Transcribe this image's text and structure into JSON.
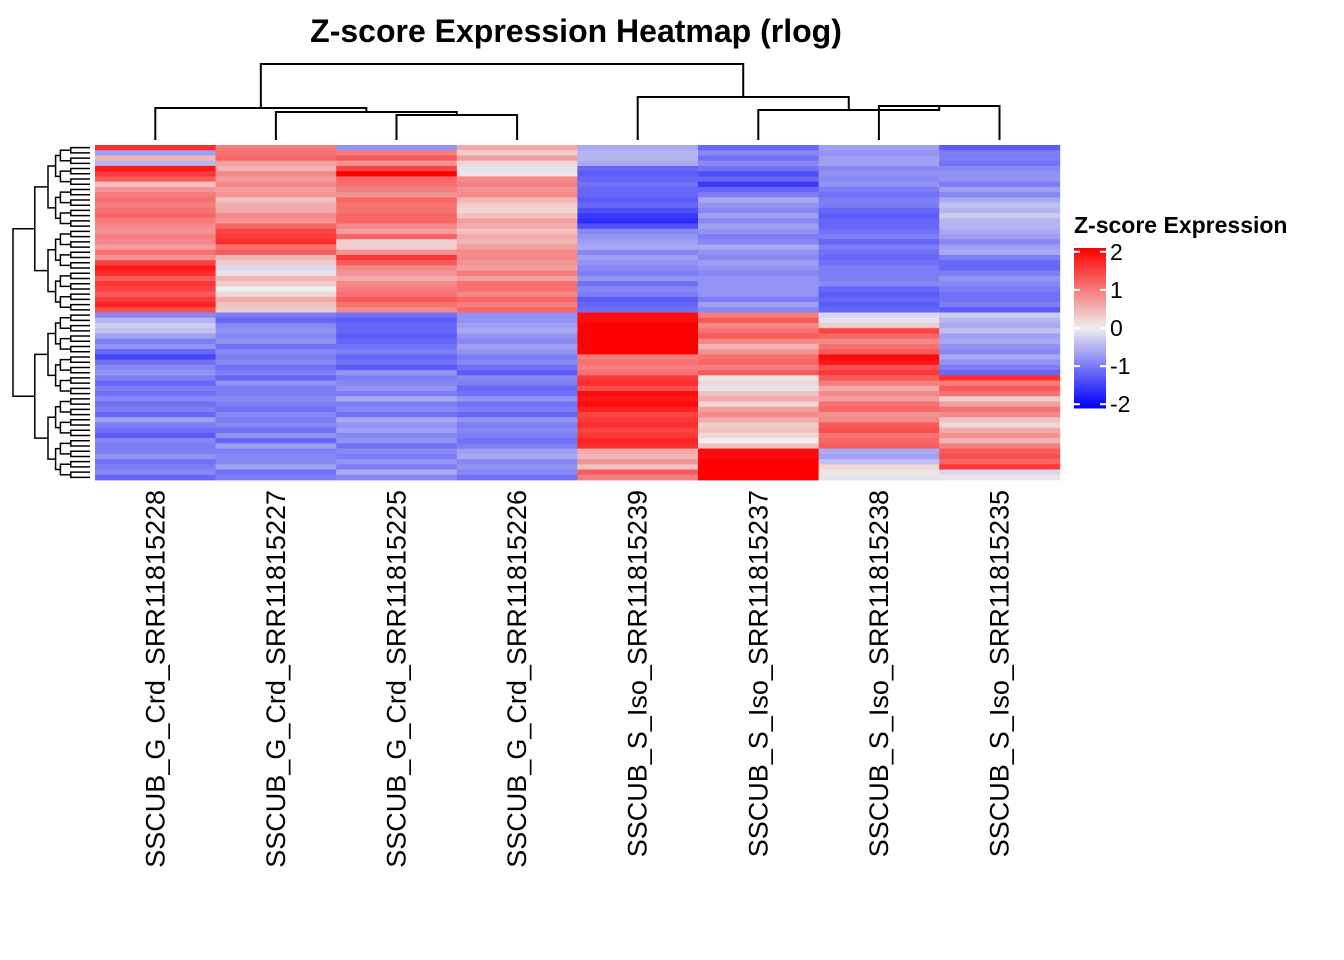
{
  "chart_data": {
    "type": "heatmap",
    "title": "Z-score Expression Heatmap (rlog)",
    "legend": {
      "title": "Z-score Expression",
      "ticks": [
        2,
        1,
        0,
        -1,
        -2
      ],
      "tick_labels": [
        "2",
        "1",
        "0",
        "-1",
        "-2"
      ],
      "range": [
        -2.1,
        2.1
      ],
      "colors": {
        "low": "#0000FF",
        "mid": "#EEEEEE",
        "high": "#FF0000"
      },
      "placement": "right"
    },
    "columns": [
      "SSCUB_G_Crd_SRR11815228",
      "SSCUB_G_Crd_SRR11815227",
      "SSCUB_G_Crd_SRR11815225",
      "SSCUB_G_Crd_SRR11815226",
      "SSCUB_S_Iso_SRR11815239",
      "SSCUB_S_Iso_SRR11815237",
      "SSCUB_S_Iso_SRR11815238",
      "SSCUB_S_Iso_SRR11815235"
    ],
    "values": [
      [
        1.7,
        1.0,
        -0.8,
        0.6,
        -0.6,
        -1.2,
        -0.7,
        -1.3
      ],
      [
        -0.7,
        1.1,
        1.0,
        0.3,
        -0.5,
        -0.9,
        -0.8,
        -1.0
      ],
      [
        0.5,
        1.2,
        1.3,
        0.7,
        -0.5,
        -1.1,
        -0.7,
        -1.0
      ],
      [
        -0.5,
        0.7,
        0.8,
        0.2,
        -0.6,
        -0.9,
        -0.7,
        -1.1
      ],
      [
        1.9,
        0.5,
        1.5,
        -0.1,
        -1.2,
        -1.1,
        -0.9,
        -0.9
      ],
      [
        1.6,
        0.9,
        2.1,
        0.1,
        -1.3,
        -1.4,
        -0.8,
        -0.8
      ],
      [
        1.3,
        0.7,
        1.2,
        0.9,
        -1.2,
        -1.2,
        -0.9,
        -0.8
      ],
      [
        0.4,
        0.9,
        1.1,
        1.0,
        -1.1,
        -1.6,
        -0.8,
        -1.0
      ],
      [
        0.8,
        0.7,
        1.0,
        0.8,
        -1.2,
        -1.2,
        -1.0,
        -0.7
      ],
      [
        1.0,
        0.8,
        0.8,
        0.9,
        -1.2,
        -1.0,
        -1.1,
        -0.9
      ],
      [
        1.1,
        0.4,
        1.2,
        0.5,
        -1.3,
        -0.6,
        -1.0,
        -0.6
      ],
      [
        1.0,
        0.6,
        1.1,
        0.3,
        -1.2,
        -0.8,
        -1.0,
        -0.4
      ],
      [
        1.1,
        0.6,
        1.1,
        0.2,
        -1.4,
        -0.9,
        -1.2,
        -0.5
      ],
      [
        1.2,
        0.9,
        1.2,
        0.4,
        -1.6,
        -0.7,
        -1.3,
        -0.3
      ],
      [
        1.0,
        0.8,
        1.2,
        0.7,
        -1.7,
        -0.9,
        -1.2,
        -0.5
      ],
      [
        0.9,
        1.2,
        0.9,
        0.6,
        -1.4,
        -0.7,
        -1.2,
        -0.5
      ],
      [
        0.8,
        1.5,
        0.7,
        0.4,
        -0.9,
        -0.8,
        -1.1,
        -0.6
      ],
      [
        1.0,
        1.6,
        1.2,
        0.6,
        -0.8,
        -1.0,
        -1.0,
        -0.7
      ],
      [
        0.9,
        1.7,
        0.3,
        0.5,
        -0.7,
        -0.9,
        -1.2,
        -0.9
      ],
      [
        0.7,
        1.1,
        0.3,
        0.7,
        -0.6,
        -0.6,
        -1.0,
        -0.7
      ],
      [
        1.1,
        1.3,
        0.8,
        0.9,
        -0.9,
        -0.8,
        -1.1,
        -0.6
      ],
      [
        0.8,
        0.5,
        1.6,
        0.9,
        -0.7,
        -0.9,
        -1.2,
        -1.0
      ],
      [
        1.5,
        0.3,
        1.3,
        0.8,
        -0.8,
        -0.7,
        -1.1,
        -1.2
      ],
      [
        1.9,
        -0.2,
        0.9,
        0.7,
        -0.9,
        -0.8,
        -1.0,
        -1.2
      ],
      [
        1.7,
        0.1,
        0.8,
        1.0,
        -1.0,
        -0.9,
        -1.0,
        -1.0
      ],
      [
        1.3,
        0.5,
        0.6,
        0.7,
        -0.8,
        -0.8,
        -1.0,
        -0.8
      ],
      [
        1.6,
        0.3,
        0.9,
        1.1,
        -1.1,
        -0.8,
        -0.9,
        -0.9
      ],
      [
        1.5,
        0.0,
        1.0,
        1.1,
        -0.9,
        -0.8,
        -1.2,
        -1.0
      ],
      [
        1.3,
        0.2,
        1.1,
        0.9,
        -1.0,
        -0.8,
        -1.3,
        -1.1
      ],
      [
        1.6,
        0.6,
        1.3,
        1.2,
        -1.3,
        -1.0,
        -1.2,
        -1.1
      ],
      [
        1.8,
        0.4,
        1.1,
        1.0,
        -1.2,
        -0.7,
        -1.3,
        -1.0
      ],
      [
        1.4,
        0.3,
        0.9,
        1.2,
        -1.1,
        -0.9,
        -1.2,
        -1.3
      ],
      [
        -0.9,
        -1.0,
        -1.1,
        -0.8,
        2.0,
        1.0,
        -0.2,
        -0.3
      ],
      [
        -0.5,
        -1.2,
        -1.3,
        -0.8,
        2.0,
        1.3,
        -0.1,
        -0.5
      ],
      [
        -0.3,
        -0.9,
        -1.2,
        -0.7,
        2.1,
        0.9,
        0.3,
        -0.6
      ],
      [
        -0.4,
        -0.8,
        -1.2,
        -0.6,
        2.1,
        1.1,
        1.5,
        -0.4
      ],
      [
        -0.7,
        -0.9,
        -1.3,
        -0.8,
        2.1,
        1.3,
        1.2,
        -0.7
      ],
      [
        -1.0,
        -0.8,
        -1.2,
        -0.9,
        2.1,
        0.9,
        0.9,
        -0.6
      ],
      [
        -0.8,
        -1.1,
        -1.1,
        -0.7,
        2.1,
        0.5,
        1.1,
        -0.8
      ],
      [
        -1.2,
        -0.9,
        -1.0,
        -0.8,
        2.1,
        0.8,
        1.3,
        -0.9
      ],
      [
        -1.5,
        -1.0,
        -1.2,
        -1.0,
        1.0,
        1.1,
        2.0,
        -0.6
      ],
      [
        -1.1,
        -0.9,
        -1.1,
        -0.9,
        1.1,
        1.2,
        1.9,
        -0.8
      ],
      [
        -0.9,
        -1.1,
        -1.3,
        -1.1,
        1.0,
        1.0,
        1.4,
        -1.0
      ],
      [
        -0.8,
        -1.0,
        -0.8,
        -1.3,
        1.1,
        1.3,
        1.6,
        -1.2
      ],
      [
        -1.0,
        -1.2,
        -1.0,
        -0.9,
        1.6,
        0.1,
        1.3,
        1.7
      ],
      [
        -1.2,
        -0.8,
        -0.9,
        -1.0,
        1.7,
        0.2,
        1.0,
        1.0
      ],
      [
        -1.0,
        -1.0,
        -0.8,
        -1.2,
        1.4,
        -0.1,
        0.6,
        1.3
      ],
      [
        -1.1,
        -1.0,
        -1.0,
        -1.1,
        2.0,
        0.4,
        0.9,
        1.1
      ],
      [
        -0.9,
        -0.9,
        -0.6,
        -0.8,
        1.9,
        0.6,
        0.7,
        0.3
      ],
      [
        -1.1,
        -1.0,
        -1.0,
        -1.1,
        2.0,
        0.2,
        1.1,
        0.7
      ],
      [
        -1.0,
        -1.1,
        -0.9,
        -1.0,
        1.8,
        0.7,
        1.2,
        1.1
      ],
      [
        -1.2,
        -0.9,
        -1.1,
        -1.2,
        1.5,
        0.9,
        0.8,
        0.9
      ],
      [
        -0.7,
        -1.0,
        -0.6,
        -0.8,
        1.6,
        0.6,
        0.9,
        0.4
      ],
      [
        -1.0,
        -0.9,
        -0.8,
        -1.0,
        1.7,
        0.3,
        1.3,
        0.2
      ],
      [
        -1.1,
        -1.1,
        -0.7,
        -0.9,
        1.5,
        0.4,
        1.4,
        0.6
      ],
      [
        -1.3,
        -0.8,
        -0.9,
        -1.0,
        1.6,
        0.2,
        1.1,
        0.8
      ],
      [
        -0.9,
        -1.2,
        -0.8,
        -1.1,
        1.8,
        0.0,
        1.2,
        0.5
      ],
      [
        -1.0,
        -0.7,
        -1.1,
        -1.0,
        1.7,
        0.4,
        1.3,
        1.0
      ],
      [
        -1.0,
        -1.0,
        -0.9,
        -0.7,
        0.6,
        2.0,
        -0.6,
        1.3
      ],
      [
        -0.8,
        -0.9,
        -1.0,
        -0.6,
        0.5,
        2.0,
        -0.7,
        1.4
      ],
      [
        -1.1,
        -0.9,
        -0.8,
        -0.9,
        0.8,
        2.1,
        -0.4,
        1.2
      ],
      [
        -1.0,
        -0.7,
        -1.0,
        -0.8,
        0.4,
        2.1,
        0.2,
        1.6
      ],
      [
        -0.9,
        -1.1,
        -0.6,
        -0.9,
        1.3,
        2.1,
        0.1,
        -0.2
      ],
      [
        -1.2,
        -1.0,
        -0.9,
        -1.1,
        1.0,
        2.1,
        -0.1,
        0.1
      ]
    ],
    "row_dendrogram": "hierarchical clustering of 64 genes (left)",
    "column_dendrogram": "hierarchical clustering of 8 samples (top)"
  }
}
